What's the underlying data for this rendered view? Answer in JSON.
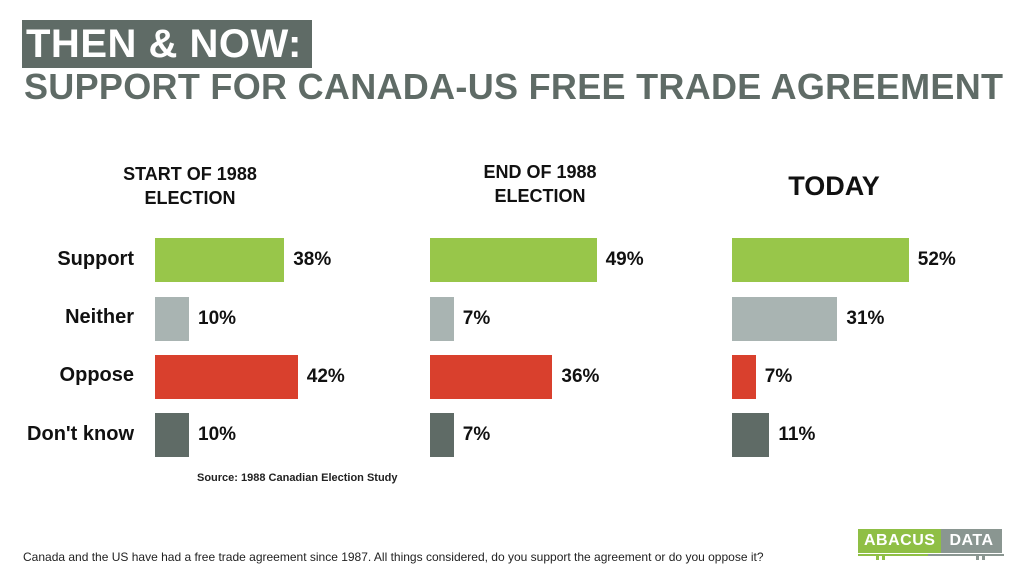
{
  "title": {
    "line1": "THEN & NOW:",
    "line2": "SUPPORT FOR CANADA-US FREE TRADE AGREEMENT"
  },
  "colors": {
    "title_bg": "#5f6b66",
    "support": "#98c64a",
    "neither": "#a9b4b2",
    "oppose": "#d9402d",
    "dont_know": "#5f6b66"
  },
  "chart_data": {
    "type": "bar",
    "orientation": "horizontal",
    "categories": [
      "Support",
      "Neither",
      "Oppose",
      "Don't know"
    ],
    "series": [
      {
        "name": "START OF 1988 ELECTION",
        "values": [
          38,
          10,
          42,
          10
        ]
      },
      {
        "name": "END OF 1988 ELECTION",
        "values": [
          49,
          7,
          36,
          7
        ]
      },
      {
        "name": "TODAY",
        "values": [
          52,
          31,
          7,
          11
        ]
      }
    ],
    "unit": "%",
    "xlim": [
      0,
      100
    ],
    "grid": false,
    "legend": "none"
  },
  "panels": [
    {
      "title_line1": "START OF 1988",
      "title_line2": "ELECTION"
    },
    {
      "title_line1": "END OF 1988",
      "title_line2": "ELECTION"
    },
    {
      "title_line1": "TODAY",
      "title_line2": ""
    }
  ],
  "source": "Source:  1988  Canadian  Election  Study",
  "footnote": "Canada and the US have had a free trade agreement since 1987.  All things considered, do you support the agreement or do you oppose it?",
  "logo": {
    "left": "ABACUS",
    "right": "DATA"
  }
}
